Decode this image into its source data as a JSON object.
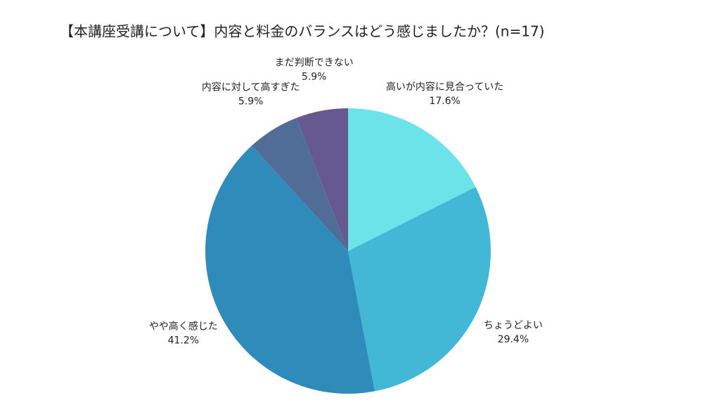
{
  "chart_data": {
    "type": "pie",
    "title": "【本講座受講について】内容と料金のバランスはどう感じましたか？(n=17)",
    "categories": [
      "高いが内容に見合っていた",
      "ちょうどよい",
      "やや高く感じた",
      "内容に対して高すぎた",
      "まだ判断できない"
    ],
    "values": [
      17.6,
      29.4,
      41.2,
      5.9,
      5.9
    ],
    "value_labels": [
      "17.6%",
      "29.4%",
      "41.2%",
      "5.9%",
      "5.9%"
    ],
    "colors": [
      "#6be3e8",
      "#42b8d6",
      "#2e8bba",
      "#4f6d96",
      "#66598f"
    ]
  }
}
